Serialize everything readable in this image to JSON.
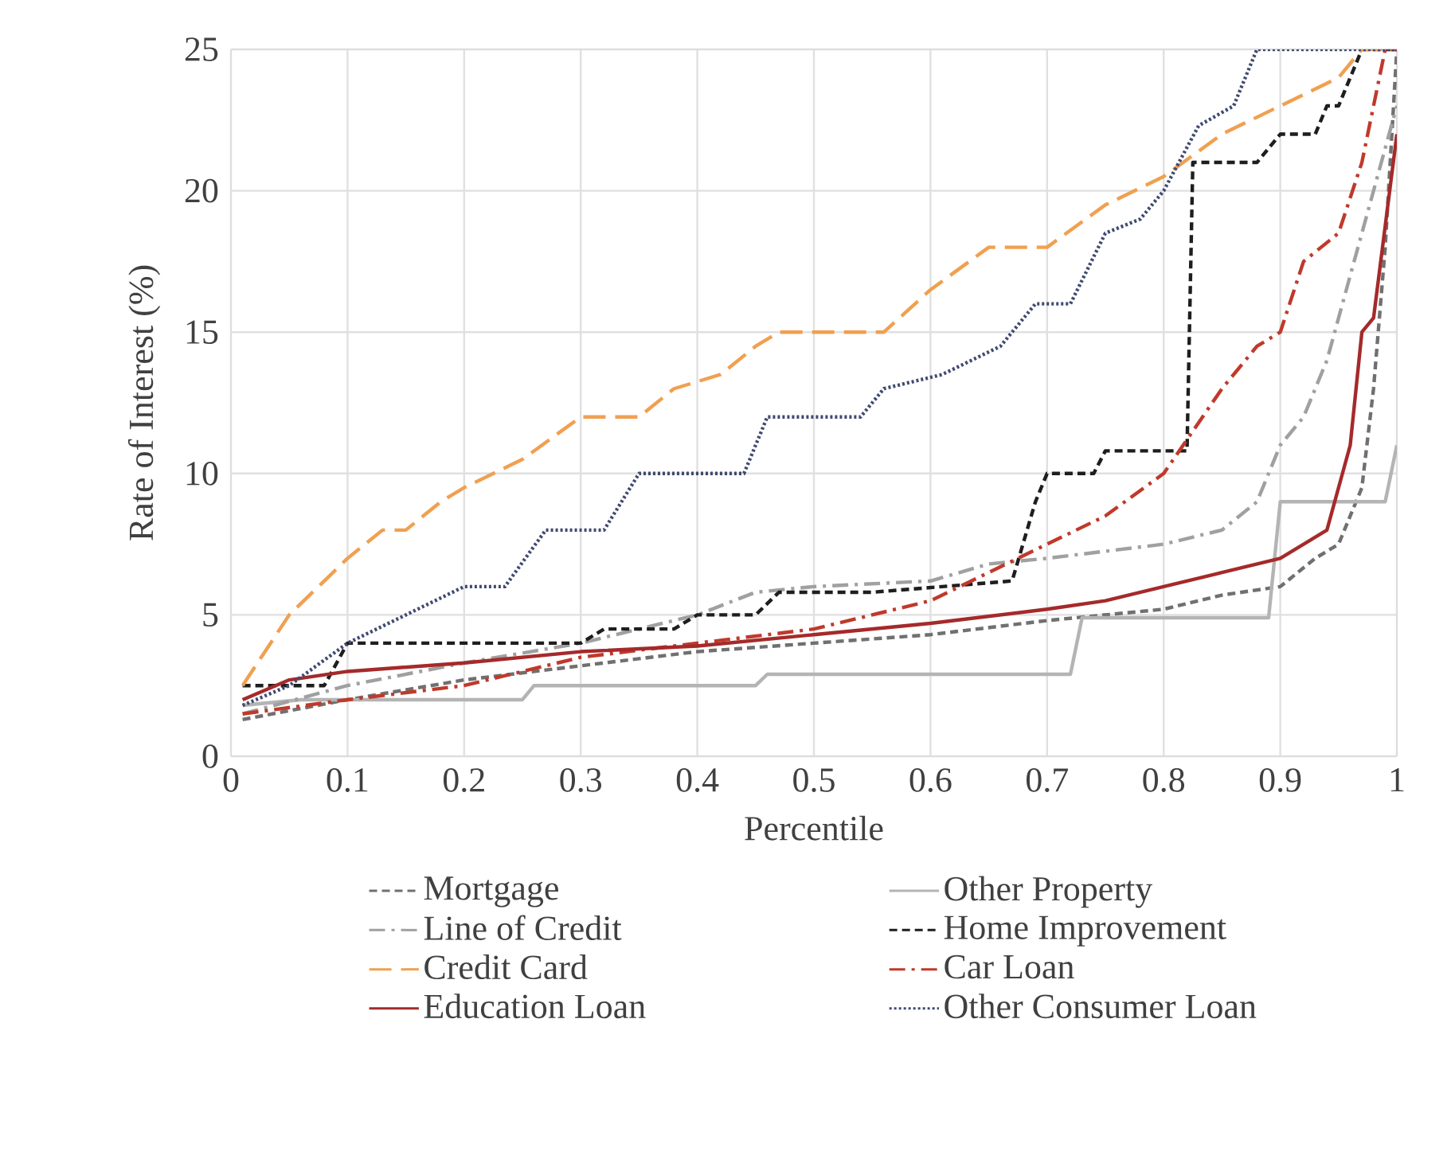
{
  "chart_data": {
    "type": "line",
    "xlabel": "Percentile",
    "ylabel": "Rate of Interest (%)",
    "xlim": [
      0,
      1
    ],
    "ylim": [
      0,
      25
    ],
    "xticks": [
      0,
      0.1,
      0.2,
      0.3,
      0.4,
      0.5,
      0.6,
      0.7,
      0.8,
      0.9,
      1
    ],
    "yticks": [
      0,
      5,
      10,
      15,
      20,
      25
    ],
    "grid": true,
    "legend": "bottom",
    "marker": "none",
    "series": [
      {
        "name": "Mortgage",
        "color": "#707070",
        "line_style": "dashed",
        "x": [
          0.01,
          0.1,
          0.2,
          0.3,
          0.4,
          0.5,
          0.6,
          0.7,
          0.8,
          0.85,
          0.9,
          0.93,
          0.95,
          0.97,
          0.98,
          0.99,
          1
        ],
        "values": [
          1.3,
          2,
          2.7,
          3.2,
          3.7,
          4,
          4.3,
          4.8,
          5.2,
          5.7,
          6,
          7,
          7.5,
          9.5,
          13,
          18,
          25
        ]
      },
      {
        "name": "Other Property",
        "color": "#b4b4b4",
        "line_style": "solid",
        "x": [
          0.01,
          0.06,
          0.25,
          0.26,
          0.45,
          0.46,
          0.72,
          0.73,
          0.89,
          0.9,
          0.99,
          1
        ],
        "values": [
          1.8,
          2,
          2,
          2.5,
          2.5,
          2.9,
          2.9,
          4.9,
          4.9,
          9,
          9,
          11
        ]
      },
      {
        "name": "Line of Credit",
        "color": "#a0a0a0",
        "line_style": "dashdot",
        "x": [
          0.01,
          0.1,
          0.2,
          0.3,
          0.4,
          0.45,
          0.5,
          0.6,
          0.65,
          0.7,
          0.8,
          0.85,
          0.88,
          0.9,
          0.92,
          0.94,
          0.96,
          0.98,
          1
        ],
        "values": [
          1.5,
          2.5,
          3.3,
          4,
          5,
          5.8,
          6,
          6.2,
          6.8,
          7,
          7.5,
          8,
          9,
          11,
          12,
          14,
          17,
          20,
          23
        ]
      },
      {
        "name": "Home Improvement",
        "color": "#1e1e1e",
        "line_style": "dashed",
        "x": [
          0.01,
          0.08,
          0.1,
          0.3,
          0.32,
          0.38,
          0.4,
          0.45,
          0.47,
          0.55,
          0.67,
          0.69,
          0.7,
          0.74,
          0.75,
          0.82,
          0.825,
          0.88,
          0.9,
          0.93,
          0.94,
          0.95,
          0.97,
          1
        ],
        "values": [
          2.5,
          2.5,
          4,
          4,
          4.5,
          4.5,
          5,
          5,
          5.8,
          5.8,
          6.2,
          9,
          10,
          10,
          10.8,
          10.8,
          21,
          21,
          22,
          22,
          23,
          23,
          25,
          25
        ]
      },
      {
        "name": "Credit Card",
        "color": "#f0a050",
        "line_style": "longdash",
        "x": [
          0.01,
          0.05,
          0.1,
          0.13,
          0.15,
          0.18,
          0.2,
          0.25,
          0.3,
          0.35,
          0.38,
          0.42,
          0.45,
          0.47,
          0.56,
          0.6,
          0.65,
          0.7,
          0.75,
          0.8,
          0.85,
          0.9,
          0.95,
          0.97,
          1
        ],
        "values": [
          2.5,
          5,
          7,
          8,
          8,
          9,
          9.5,
          10.5,
          12,
          12,
          13,
          13.5,
          14.5,
          15,
          15,
          16.5,
          18,
          18,
          19.5,
          20.5,
          22,
          23,
          24,
          25,
          25
        ]
      },
      {
        "name": "Car Loan",
        "color": "#c0392b",
        "line_style": "dashdot",
        "x": [
          0.01,
          0.1,
          0.2,
          0.3,
          0.4,
          0.5,
          0.55,
          0.6,
          0.65,
          0.7,
          0.75,
          0.8,
          0.85,
          0.88,
          0.9,
          0.92,
          0.95,
          0.97,
          0.99,
          1
        ],
        "values": [
          1.5,
          2,
          2.5,
          3.5,
          4,
          4.5,
          5,
          5.5,
          6.5,
          7.5,
          8.5,
          10,
          13,
          14.5,
          15,
          17.5,
          18.5,
          21,
          25,
          25
        ]
      },
      {
        "name": "Education Loan",
        "color": "#a52a2a",
        "line_style": "solid",
        "x": [
          0.01,
          0.05,
          0.1,
          0.2,
          0.3,
          0.4,
          0.5,
          0.6,
          0.7,
          0.75,
          0.8,
          0.85,
          0.9,
          0.92,
          0.94,
          0.96,
          0.97,
          0.98,
          1
        ],
        "values": [
          2,
          2.7,
          3,
          3.3,
          3.7,
          3.9,
          4.3,
          4.7,
          5.2,
          5.5,
          6,
          6.5,
          7,
          7.5,
          8,
          11,
          15,
          15.5,
          22
        ]
      },
      {
        "name": "Other Consumer Loan",
        "color": "#404a70",
        "line_style": "dotted",
        "x": [
          0.01,
          0.05,
          0.1,
          0.15,
          0.2,
          0.235,
          0.27,
          0.32,
          0.35,
          0.44,
          0.46,
          0.54,
          0.56,
          0.61,
          0.66,
          0.69,
          0.72,
          0.75,
          0.78,
          0.8,
          0.83,
          0.86,
          0.88,
          1
        ],
        "values": [
          1.8,
          2.5,
          4,
          5,
          6,
          6,
          8,
          8,
          10,
          10,
          12,
          12,
          13,
          13.5,
          14.5,
          16,
          16,
          18.5,
          19,
          20,
          22.3,
          23,
          25,
          25
        ]
      }
    ]
  }
}
